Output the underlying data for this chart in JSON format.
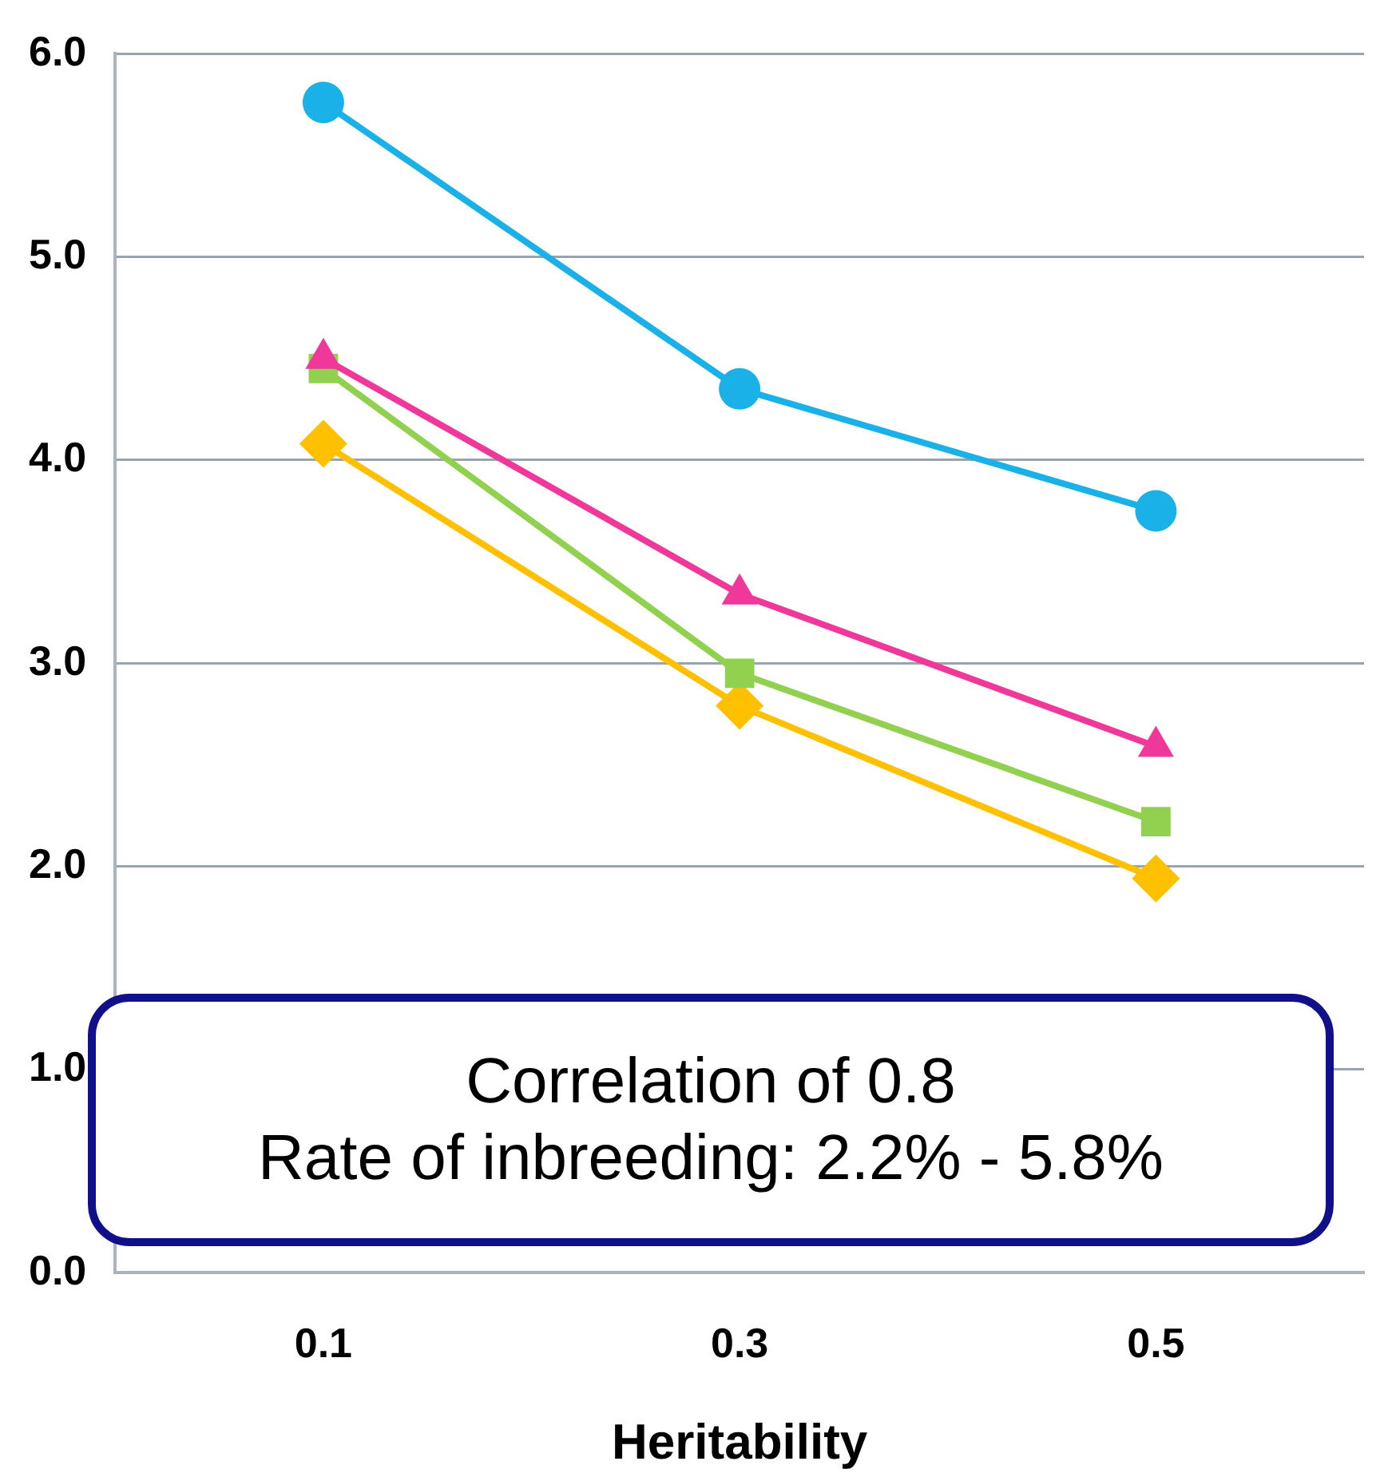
{
  "chart_data": {
    "type": "line",
    "xlabel": "Heritability",
    "categories": [
      "0.1",
      "0.3",
      "0.5"
    ],
    "series": [
      {
        "color": "#1ab0e8",
        "marker": "circle",
        "values": [
          5.76,
          4.35,
          3.75
        ]
      },
      {
        "color": "#f0379a",
        "marker": "triangle",
        "values": [
          4.5,
          3.34,
          2.59
        ]
      },
      {
        "color": "#92d050",
        "marker": "square",
        "values": [
          4.45,
          2.95,
          2.22
        ]
      },
      {
        "color": "#ffc000",
        "marker": "diamond",
        "values": [
          4.08,
          2.79,
          1.94
        ]
      }
    ],
    "ylim": [
      0,
      6
    ],
    "yticks": [
      {
        "value": 0,
        "label": "0.0"
      },
      {
        "value": 1,
        "label": "1.0"
      },
      {
        "value": 2,
        "label": "2.0"
      },
      {
        "value": 3,
        "label": "3.0"
      },
      {
        "value": 4,
        "label": "4.0"
      },
      {
        "value": 5,
        "label": "5.0"
      },
      {
        "value": 6,
        "label": "6.0"
      }
    ],
    "grid": "y",
    "legend": false,
    "annotations": [
      "Correlation of 0.8\nRate of inbreeding: 2.2% - 5.8%"
    ]
  }
}
